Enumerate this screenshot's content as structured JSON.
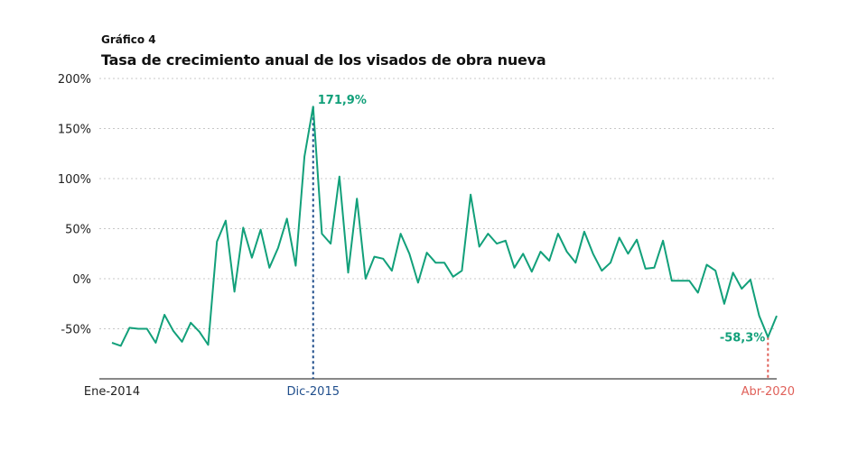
{
  "header": {
    "kicker": "Gráfico 4",
    "title": "Tasa de crecimiento anual de los visados de obra nueva"
  },
  "colors": {
    "line": "#12a07a",
    "peak_marker": "#1f4e8c",
    "last_marker": "#e0615a",
    "grid": "#c8c8c8"
  },
  "chart_data": {
    "type": "line",
    "title": "Tasa de crecimiento anual de los visados de obra nueva",
    "xlabel": "",
    "ylabel": "",
    "ylim": [
      -100,
      200
    ],
    "yticks": [
      {
        "value": 200,
        "label": "200%"
      },
      {
        "value": 150,
        "label": "150%"
      },
      {
        "value": 100,
        "label": "100%"
      },
      {
        "value": 50,
        "label": "50%"
      },
      {
        "value": 0,
        "label": "0%"
      },
      {
        "value": -50,
        "label": "-50%"
      }
    ],
    "xticks": [
      {
        "index": 0,
        "label": "Ene-2014"
      },
      {
        "index": 23,
        "label": "Dic-2015"
      },
      {
        "index": 75,
        "label": "Abr-2020"
      }
    ],
    "series": [
      {
        "name": "Tasa de crecimiento anual",
        "values": [
          -64,
          -67,
          -49,
          -50,
          -50,
          -64,
          -36,
          -52,
          -63,
          -44,
          -53,
          -66,
          37,
          58,
          -13,
          51,
          21,
          49,
          11,
          31,
          60,
          13,
          122,
          171.9,
          45,
          35,
          102,
          6,
          80,
          0,
          22,
          20,
          8,
          45,
          25,
          -4,
          26,
          16,
          16,
          2,
          8,
          84,
          32,
          45,
          35,
          38,
          11,
          25,
          7,
          27,
          18,
          45,
          27,
          16,
          47,
          25,
          8,
          16,
          41,
          25,
          39,
          10,
          11,
          38,
          -2,
          -2,
          -2,
          -14,
          14,
          8,
          -25,
          6,
          -10,
          -1,
          -37,
          -58.3,
          -37
        ]
      }
    ],
    "annotations": [
      {
        "index": 23,
        "label": "171,9%"
      },
      {
        "index": 75,
        "label": "-58,3%"
      }
    ]
  }
}
